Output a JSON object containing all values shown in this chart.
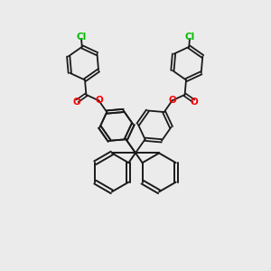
{
  "background_color": "#ebebeb",
  "bond_color": "#1a1a1a",
  "oxygen_color": "#ff0000",
  "chlorine_color": "#00bb00",
  "fig_width": 3.0,
  "fig_height": 3.0,
  "dpi": 100,
  "xlim": [
    0,
    10
  ],
  "ylim": [
    0,
    10
  ]
}
